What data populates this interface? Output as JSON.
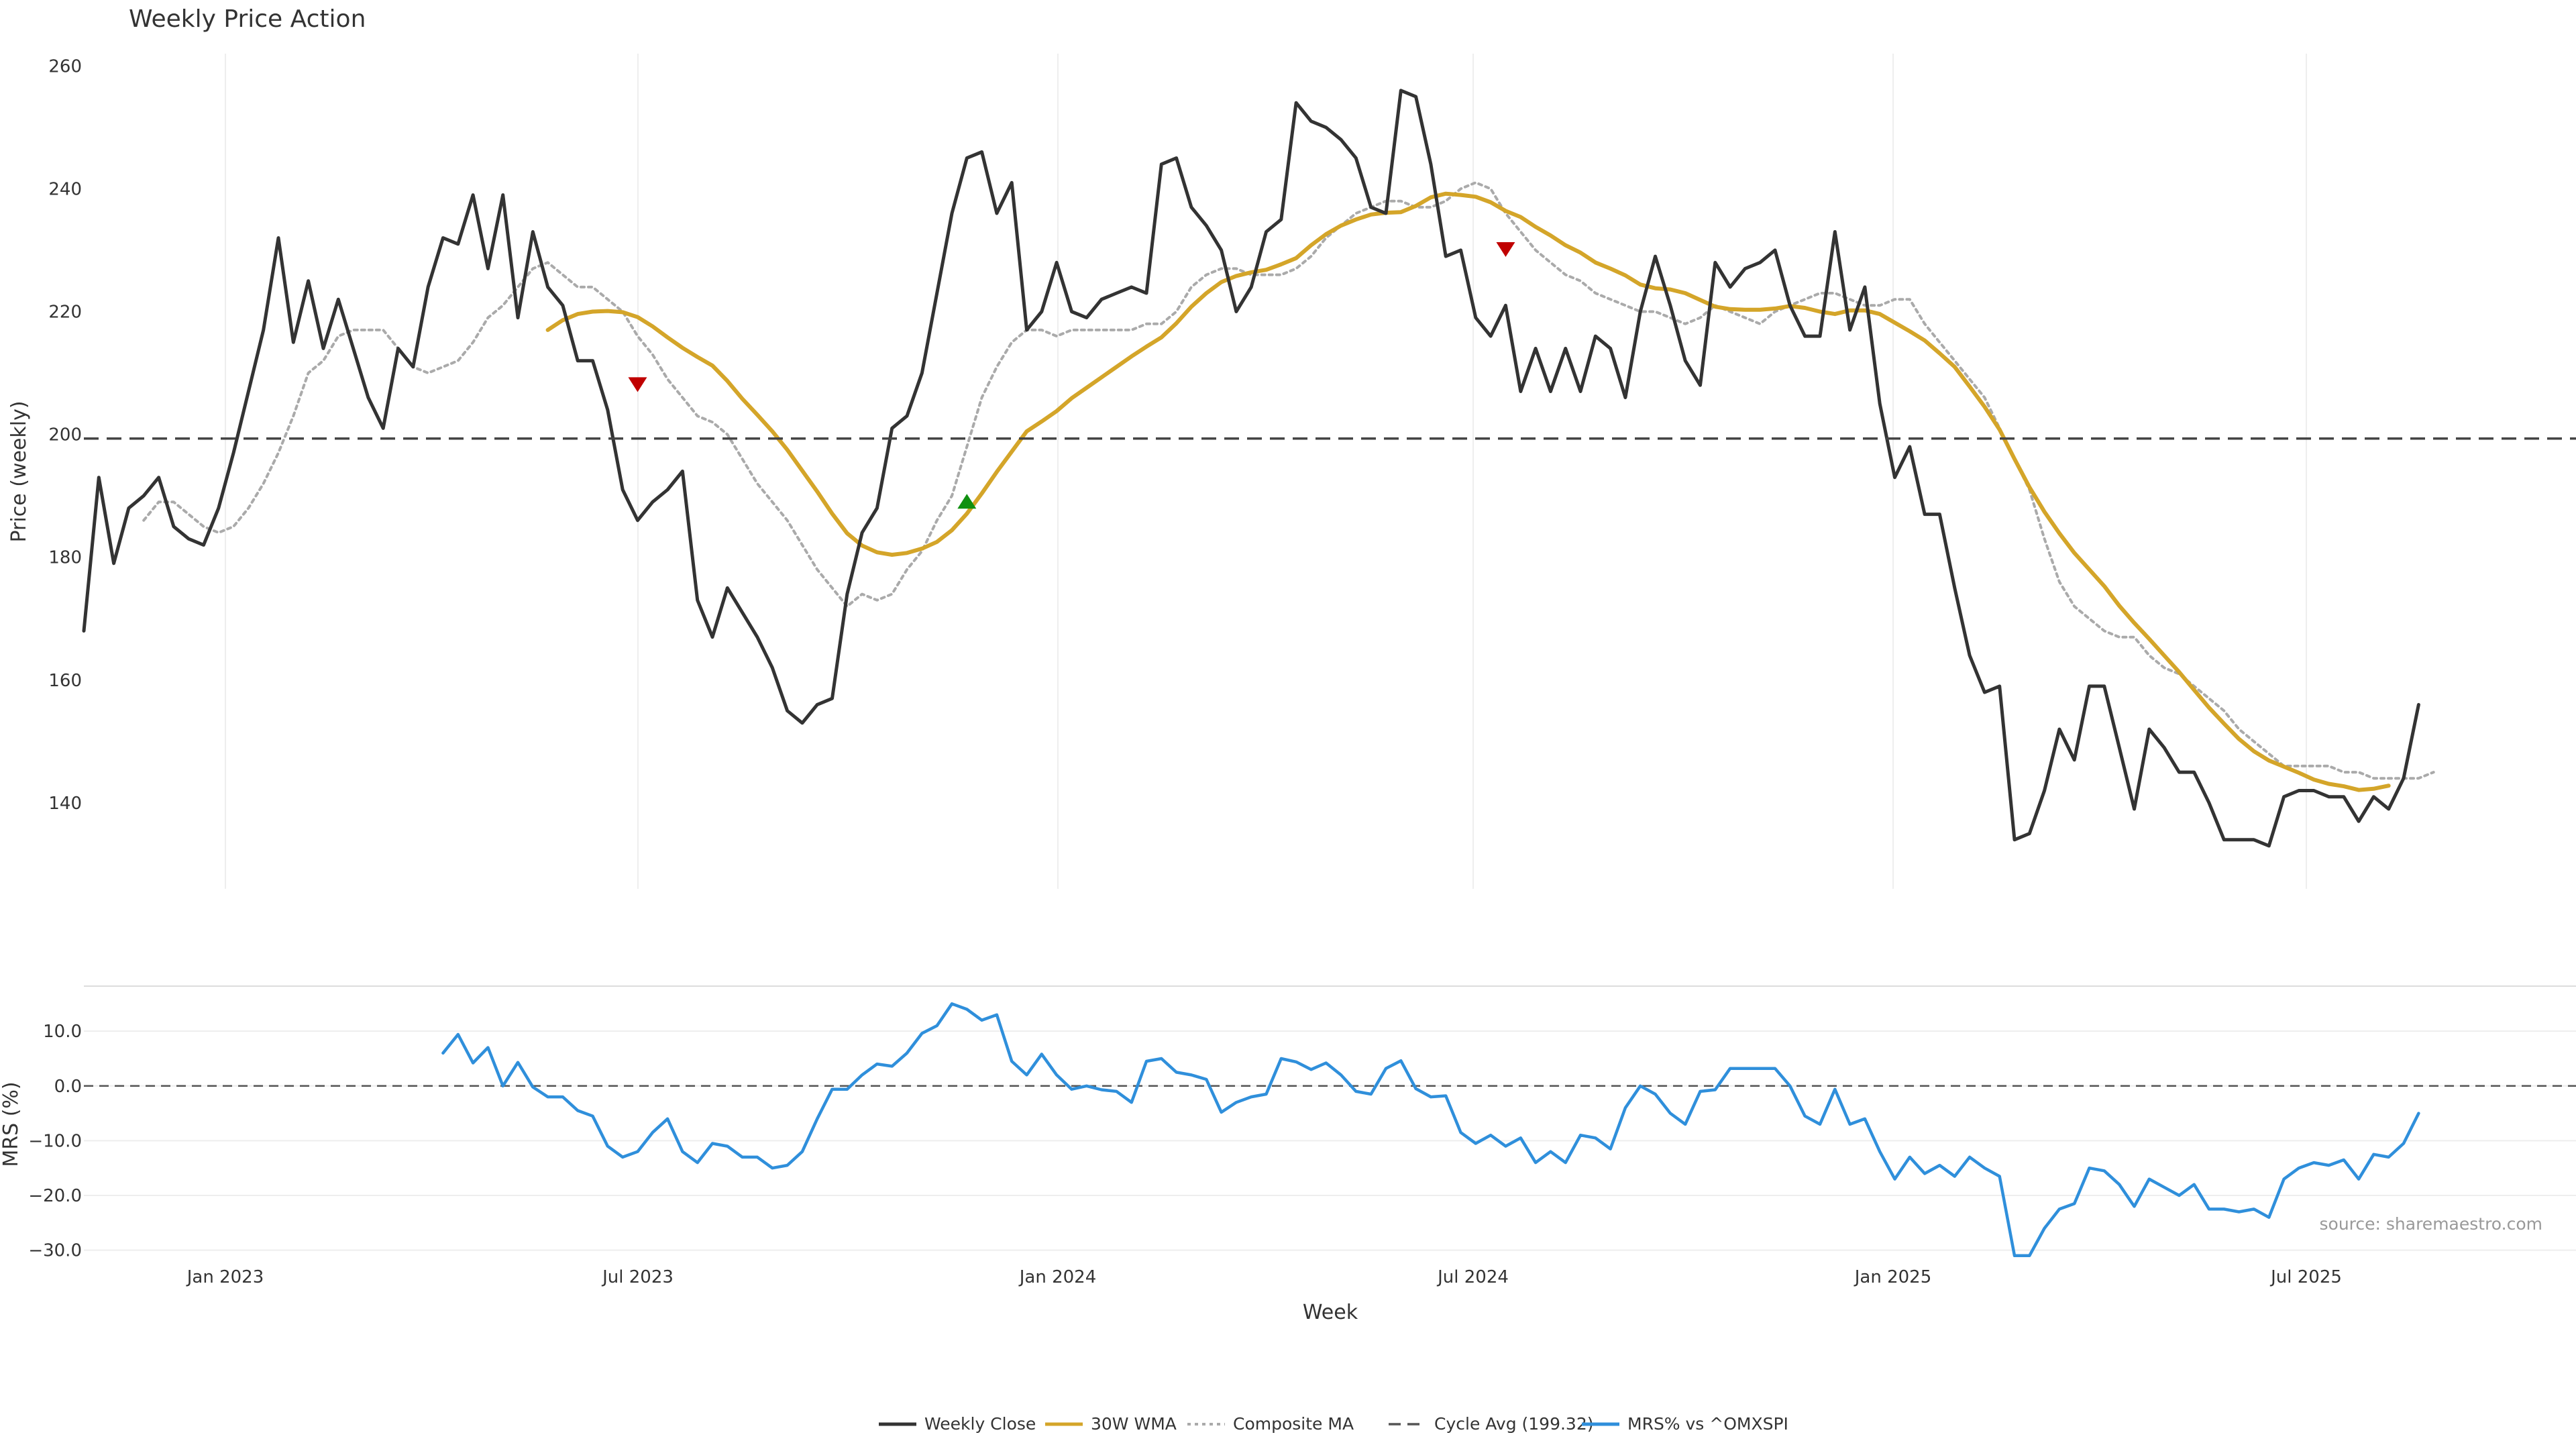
{
  "chart_data": {
    "type": "line",
    "title": "Weekly Price Action",
    "source": "source: sharemaestro.com",
    "xlabel": "Week",
    "x_ticks": [
      "Jan 2023",
      "Jul 2023",
      "Jan 2024",
      "Jul 2024",
      "Jan 2025",
      "Jul 2025"
    ],
    "price_panel": {
      "ylabel": "Price (weekly)",
      "ylim": [
        126,
        262
      ],
      "y_ticks": [
        "140",
        "160",
        "180",
        "200",
        "220",
        "240",
        "260"
      ],
      "cycle_avg": 199.32,
      "grid": "vertical, light",
      "series": [
        {
          "name": "Weekly Close",
          "color": "#333333",
          "start_index": 0,
          "values": [
            168,
            193,
            179,
            188,
            190,
            193,
            185,
            183,
            182,
            188,
            197,
            207,
            217,
            232,
            215,
            225,
            214,
            222,
            214,
            206,
            201,
            214,
            211,
            224,
            232,
            231,
            239,
            227,
            239,
            219,
            233,
            224,
            221,
            212,
            212,
            204,
            191,
            186,
            189,
            191,
            194,
            173,
            167,
            175,
            171,
            167,
            162,
            155,
            153,
            156,
            157,
            174,
            184,
            188,
            201,
            203,
            210,
            223,
            236,
            245,
            246,
            236,
            241,
            217,
            220,
            228,
            220,
            219,
            222,
            223,
            224,
            223,
            244,
            245,
            237,
            234,
            230,
            220,
            224,
            233,
            235,
            254,
            251,
            250,
            248,
            245,
            237,
            236,
            256,
            255,
            244,
            229,
            230,
            219,
            216,
            221,
            207,
            214,
            207,
            214,
            207,
            216,
            214,
            206,
            220,
            229,
            221,
            212,
            208,
            228,
            224,
            227,
            228,
            230,
            221,
            216,
            216,
            233,
            217,
            224,
            205,
            193,
            198,
            187,
            187,
            175,
            164,
            158,
            159,
            134,
            135,
            142,
            152,
            147,
            159,
            159,
            149,
            139,
            152,
            149,
            145,
            145,
            140,
            134,
            134,
            134,
            133,
            141,
            142,
            142,
            141,
            141,
            137,
            141,
            139,
            144,
            156
          ]
        },
        {
          "name": "30W WMA",
          "color": "#D4A529",
          "start_index": 31,
          "values": [
            217,
            218.6,
            219.6,
            220,
            220.1,
            219.9,
            219.1,
            217.6,
            215.8,
            214.1,
            212.6,
            211.2,
            208.7,
            205.8,
            203.2,
            200.5,
            197.5,
            194.1,
            190.7,
            187.1,
            183.9,
            181.9,
            180.8,
            180.4,
            180.7,
            181.4,
            182.5,
            184.4,
            187.1,
            190.4,
            193.9,
            197.2,
            200.5,
            202.1,
            203.8,
            205.9,
            207.6,
            209.3,
            211,
            212.7,
            214.3,
            215.8,
            218.1,
            220.8,
            223,
            224.8,
            225.8,
            226.4,
            226.8,
            227.7,
            228.7,
            230.8,
            232.6,
            234,
            235,
            235.8,
            236.1,
            236.2,
            237.2,
            238.6,
            239.2,
            239,
            238.7,
            237.8,
            236.4,
            235.4,
            233.8,
            232.4,
            230.8,
            229.6,
            228,
            227,
            225.9,
            224.4,
            223.8,
            223.6,
            223,
            221.9,
            220.8,
            220.4,
            220.3,
            220.3,
            220.5,
            220.9,
            220.6,
            220,
            219.6,
            220.2,
            220.2,
            219.6,
            218.2,
            216.8,
            215.3,
            213.2,
            211,
            207.8,
            204.5,
            200.8,
            196,
            191.4,
            187.4,
            183.9,
            180.7,
            178,
            175.3,
            172.1,
            169.3,
            166.7,
            164,
            161.3,
            158.4,
            155.5,
            152.9,
            150.4,
            148.4,
            146.9,
            145.9,
            144.9,
            143.8,
            143.1,
            142.7,
            142.1,
            142.3,
            142.8
          ]
        },
        {
          "name": "Composite MA",
          "color": "#AAAAAA",
          "start_index": 4,
          "values": [
            186,
            189,
            189,
            187,
            185,
            184,
            185,
            188,
            192,
            197,
            203,
            210,
            212,
            216,
            217,
            217,
            217,
            214,
            211,
            210,
            211,
            212,
            215,
            219,
            221,
            224,
            227,
            228,
            226,
            224,
            224,
            222,
            220,
            216,
            213,
            209,
            206,
            203,
            202,
            200,
            196,
            192,
            189,
            186,
            182,
            178,
            175,
            172,
            174,
            173,
            174,
            178,
            181,
            186,
            190,
            198,
            206,
            211,
            215,
            217,
            217,
            216,
            217,
            217,
            217,
            217,
            217,
            218,
            218,
            220,
            224,
            226,
            227,
            227,
            226,
            226,
            226,
            227,
            229,
            232,
            234,
            236,
            237,
            238,
            238,
            237,
            237,
            238,
            240,
            241,
            240,
            236,
            233,
            230,
            228,
            226,
            225,
            223,
            222,
            221,
            220,
            220,
            219,
            218,
            219,
            221,
            220,
            219,
            218,
            220,
            221,
            222,
            223,
            223,
            222,
            221,
            221,
            222,
            222,
            218,
            215,
            212,
            209,
            206,
            201,
            196,
            191,
            183,
            176,
            172,
            170,
            168,
            167,
            167,
            164,
            162,
            161,
            159,
            157,
            155,
            152,
            150,
            148,
            146,
            146,
            146,
            146,
            145,
            145,
            144,
            144,
            144,
            144,
            145
          ]
        }
      ],
      "signals": [
        {
          "type": "sell",
          "color": "#C00000",
          "x_index": 37,
          "value": 208
        },
        {
          "type": "buy",
          "color": "#109010",
          "x_index": 59,
          "value": 189
        },
        {
          "type": "sell",
          "color": "#C00000",
          "x_index": 95,
          "value": 230
        }
      ]
    },
    "mrs_panel": {
      "ylabel": "MRS (%)",
      "ylim": [
        -32,
        17
      ],
      "y_ticks": [
        "−30.0",
        "−20.0",
        "−10.0",
        "0.0",
        "10.0"
      ],
      "series": [
        {
          "name": "MRS% vs ^OMXSPI",
          "color": "#2F8FDB",
          "start_index": 24,
          "values": [
            6,
            9.4,
            4.2,
            7,
            0,
            4.3,
            -0.2,
            -2,
            -2,
            -4.5,
            -5.5,
            -11,
            -13,
            -12,
            -8.5,
            -6,
            -12,
            -14,
            -10.5,
            -11,
            -13,
            -13,
            -15,
            -14.5,
            -12,
            -6,
            -0.6,
            -0.6,
            2,
            4,
            3.6,
            6,
            9.6,
            11,
            15,
            14,
            12,
            13,
            4.5,
            2,
            5.8,
            2,
            -0.6,
            0,
            -0.7,
            -1,
            -3,
            4.5,
            5,
            2.5,
            2,
            1.2,
            -4.8,
            -3,
            -2,
            -1.5,
            5,
            4.4,
            3,
            4.2,
            2,
            -1,
            -1.5,
            3.2,
            4.6,
            -0.5,
            -2,
            -1.8,
            -8.5,
            -10.5,
            -9,
            -11,
            -9.5,
            -14,
            -12,
            -14,
            -9,
            -9.5,
            -11.5,
            -4,
            0,
            -1.5,
            -5,
            -7,
            -1,
            -0.7,
            3.2,
            3.2,
            3.2,
            3.2,
            0,
            -5.5,
            -7,
            -0.6,
            -7,
            -6,
            -12,
            -17,
            -13,
            -16,
            -14.5,
            -16.5,
            -13,
            -15,
            -16.5,
            -31,
            -31,
            -26,
            -22.5,
            -21.5,
            -15,
            -15.5,
            -18,
            -22,
            -17,
            -18.5,
            -20,
            -18,
            -22.5,
            -22.5,
            -23,
            -22.5,
            -24,
            -17,
            -15,
            -14,
            -14.5,
            -13.5,
            -17,
            -12.5,
            -13,
            -10.5,
            -5
          ]
        }
      ]
    },
    "legend": {
      "placement": "bottom-center",
      "entries": [
        {
          "label": "Weekly Close",
          "color": "#333333",
          "style": "solid"
        },
        {
          "label": "30W WMA",
          "color": "#D4A529",
          "style": "solid"
        },
        {
          "label": "Composite MA",
          "color": "#AAAAAA",
          "style": "dotted"
        },
        {
          "label": "Cycle Avg (199.32)",
          "color": "#555555",
          "style": "dashed"
        },
        {
          "label": "MRS% vs ^OMXSPI",
          "color": "#2F8FDB",
          "style": "solid"
        }
      ]
    }
  }
}
